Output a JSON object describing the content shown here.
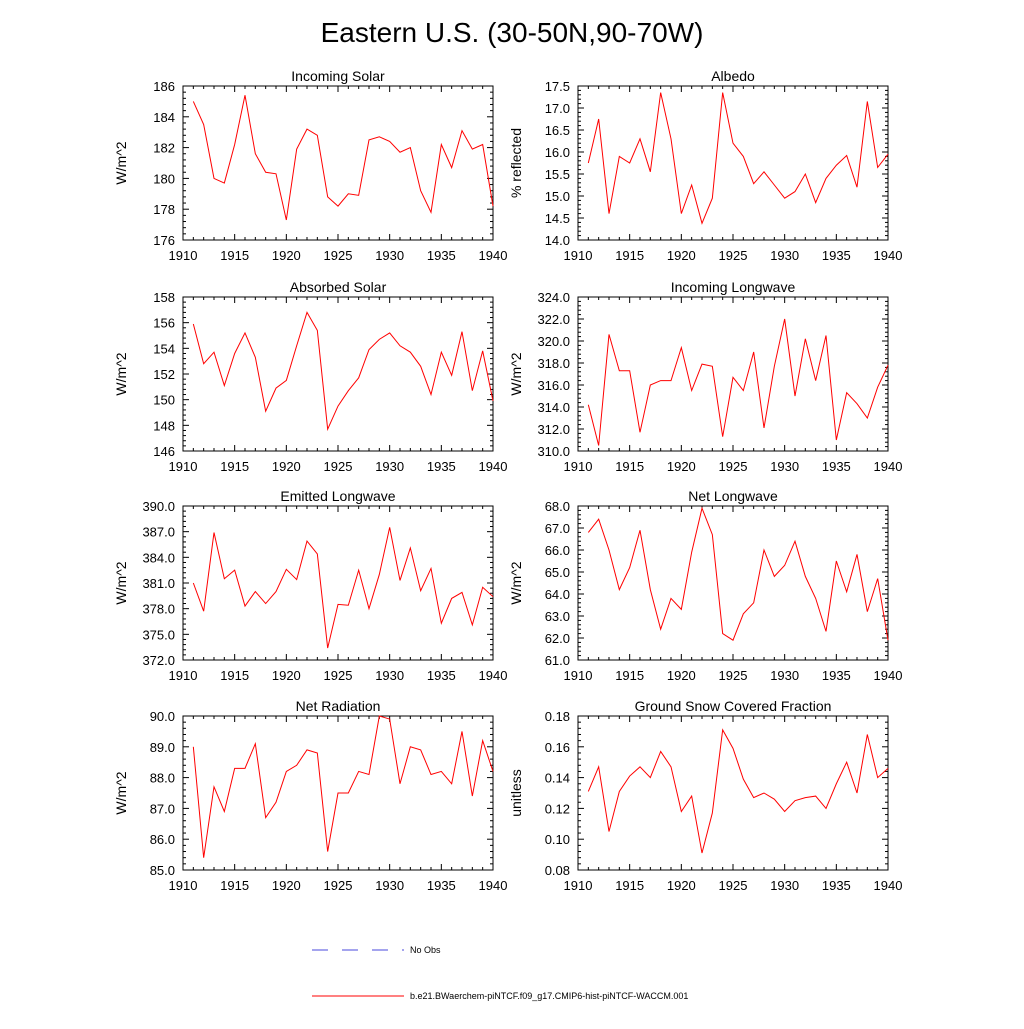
{
  "title": "Eastern U.S. (30-50N,90-70W)",
  "legend": {
    "obs_label": "No Obs",
    "model_label": "b.e21.BWaerchem-piNTCF.f09_g17.CMIP6-hist-piNTCF-WACCM.001",
    "obs_color": "#4a4adc",
    "model_color": "#ff0000"
  },
  "chart_data": [
    {
      "type": "line",
      "title": "Incoming Solar",
      "ylabel": "W/m^2",
      "xlabel": "",
      "xlim": [
        1910,
        1940
      ],
      "ylim": [
        176,
        186
      ],
      "xticks": [
        "1910",
        "1915",
        "1920",
        "1925",
        "1930",
        "1935",
        "1940"
      ],
      "yticks": [
        "176",
        "178",
        "180",
        "182",
        "184",
        "186"
      ],
      "x": [
        1911,
        1912,
        1913,
        1914,
        1915,
        1916,
        1917,
        1918,
        1919,
        1920,
        1921,
        1922,
        1923,
        1924,
        1925,
        1926,
        1927,
        1928,
        1929,
        1930,
        1931,
        1932,
        1933,
        1934,
        1935,
        1936,
        1937,
        1938,
        1939,
        1940
      ],
      "series": [
        {
          "color": "#ff0000",
          "values": [
            185.0,
            183.5,
            180.0,
            179.7,
            182.2,
            185.4,
            181.6,
            180.4,
            180.3,
            177.3,
            181.9,
            183.2,
            182.8,
            178.8,
            178.2,
            179.0,
            178.9,
            182.5,
            182.7,
            182.4,
            181.7,
            182.0,
            179.2,
            177.8,
            182.2,
            180.7,
            183.1,
            181.9,
            182.2,
            178.2
          ]
        }
      ]
    },
    {
      "type": "line",
      "title": "Albedo",
      "ylabel": "% reflected",
      "xlabel": "",
      "xlim": [
        1910,
        1940
      ],
      "ylim": [
        14.0,
        17.5
      ],
      "xticks": [
        "1910",
        "1915",
        "1920",
        "1925",
        "1930",
        "1935",
        "1940"
      ],
      "yticks": [
        "14.0",
        "14.5",
        "15.0",
        "15.5",
        "16.0",
        "16.5",
        "17.0",
        "17.5"
      ],
      "x": [
        1911,
        1912,
        1913,
        1914,
        1915,
        1916,
        1917,
        1918,
        1919,
        1920,
        1921,
        1922,
        1923,
        1924,
        1925,
        1926,
        1927,
        1928,
        1929,
        1930,
        1931,
        1932,
        1933,
        1934,
        1935,
        1936,
        1937,
        1938,
        1939,
        1940
      ],
      "series": [
        {
          "color": "#ff0000",
          "values": [
            15.75,
            16.75,
            14.6,
            15.9,
            15.75,
            16.3,
            15.55,
            17.35,
            16.3,
            14.6,
            15.25,
            14.38,
            14.95,
            17.35,
            16.2,
            15.9,
            15.28,
            15.55,
            15.25,
            14.95,
            15.1,
            15.5,
            14.85,
            15.4,
            15.7,
            15.92,
            15.2,
            17.15,
            15.65,
            15.95
          ]
        }
      ]
    },
    {
      "type": "line",
      "title": "Absorbed Solar",
      "ylabel": "W/m^2",
      "xlabel": "",
      "xlim": [
        1910,
        1940
      ],
      "ylim": [
        146,
        158
      ],
      "xticks": [
        "1910",
        "1915",
        "1920",
        "1925",
        "1930",
        "1935",
        "1940"
      ],
      "yticks": [
        "146",
        "148",
        "150",
        "152",
        "154",
        "156",
        "158"
      ],
      "x": [
        1911,
        1912,
        1913,
        1914,
        1915,
        1916,
        1917,
        1918,
        1919,
        1920,
        1921,
        1922,
        1923,
        1924,
        1925,
        1926,
        1927,
        1928,
        1929,
        1930,
        1931,
        1932,
        1933,
        1934,
        1935,
        1936,
        1937,
        1938,
        1939,
        1940
      ],
      "series": [
        {
          "color": "#ff0000",
          "values": [
            155.9,
            152.8,
            153.7,
            151.1,
            153.6,
            155.2,
            153.3,
            149.1,
            150.9,
            151.5,
            154.2,
            156.8,
            155.4,
            147.7,
            149.5,
            150.7,
            151.7,
            153.9,
            154.7,
            155.2,
            154.2,
            153.7,
            152.6,
            150.4,
            153.7,
            151.9,
            155.3,
            150.7,
            153.8,
            149.9
          ]
        }
      ]
    },
    {
      "type": "line",
      "title": "Incoming Longwave",
      "ylabel": "W/m^2",
      "xlabel": "",
      "xlim": [
        1910,
        1940
      ],
      "ylim": [
        310.0,
        324.0
      ],
      "xticks": [
        "1910",
        "1915",
        "1920",
        "1925",
        "1930",
        "1935",
        "1940"
      ],
      "yticks": [
        "310.0",
        "312.0",
        "314.0",
        "316.0",
        "318.0",
        "320.0",
        "322.0",
        "324.0"
      ],
      "x": [
        1911,
        1912,
        1913,
        1914,
        1915,
        1916,
        1917,
        1918,
        1919,
        1920,
        1921,
        1922,
        1923,
        1924,
        1925,
        1926,
        1927,
        1928,
        1929,
        1930,
        1931,
        1932,
        1933,
        1934,
        1935,
        1936,
        1937,
        1938,
        1939,
        1940
      ],
      "series": [
        {
          "color": "#ff0000",
          "values": [
            314.2,
            310.5,
            320.6,
            317.3,
            317.3,
            311.7,
            316.0,
            316.4,
            316.4,
            319.4,
            315.5,
            317.9,
            317.7,
            311.3,
            316.7,
            315.5,
            319.0,
            312.1,
            317.7,
            322.0,
            315.0,
            320.2,
            316.4,
            320.5,
            311.0,
            315.3,
            314.3,
            313.0,
            315.8,
            317.8
          ]
        }
      ]
    },
    {
      "type": "line",
      "title": "Emitted Longwave",
      "ylabel": "W/m^2",
      "xlabel": "",
      "xlim": [
        1910,
        1940
      ],
      "ylim": [
        372.0,
        390.0
      ],
      "xticks": [
        "1910",
        "1915",
        "1920",
        "1925",
        "1930",
        "1935",
        "1940"
      ],
      "yticks": [
        "372.0",
        "375.0",
        "378.0",
        "381.0",
        "384.0",
        "387.0",
        "390.0"
      ],
      "x": [
        1911,
        1912,
        1913,
        1914,
        1915,
        1916,
        1917,
        1918,
        1919,
        1920,
        1921,
        1922,
        1923,
        1924,
        1925,
        1926,
        1927,
        1928,
        1929,
        1930,
        1931,
        1932,
        1933,
        1934,
        1935,
        1936,
        1937,
        1938,
        1939,
        1940
      ],
      "series": [
        {
          "color": "#ff0000",
          "values": [
            381.0,
            377.7,
            386.9,
            381.5,
            382.5,
            378.3,
            380.0,
            378.6,
            380.0,
            382.6,
            381.4,
            385.9,
            384.4,
            373.4,
            378.5,
            378.4,
            382.5,
            378.0,
            382.0,
            387.5,
            381.3,
            385.1,
            380.1,
            382.7,
            376.3,
            379.2,
            379.9,
            376.1,
            380.5,
            379.4
          ]
        }
      ]
    },
    {
      "type": "line",
      "title": "Net Longwave",
      "ylabel": "W/m^2",
      "xlabel": "",
      "xlim": [
        1910,
        1940
      ],
      "ylim": [
        61.0,
        68.0
      ],
      "xticks": [
        "1910",
        "1915",
        "1920",
        "1925",
        "1930",
        "1935",
        "1940"
      ],
      "yticks": [
        "61.0",
        "62.0",
        "63.0",
        "64.0",
        "65.0",
        "66.0",
        "67.0",
        "68.0"
      ],
      "x": [
        1911,
        1912,
        1913,
        1914,
        1915,
        1916,
        1917,
        1918,
        1919,
        1920,
        1921,
        1922,
        1923,
        1924,
        1925,
        1926,
        1927,
        1928,
        1929,
        1930,
        1931,
        1932,
        1933,
        1934,
        1935,
        1936,
        1937,
        1938,
        1939,
        1940
      ],
      "series": [
        {
          "color": "#ff0000",
          "values": [
            66.8,
            67.4,
            66.0,
            64.2,
            65.2,
            66.9,
            64.2,
            62.4,
            63.8,
            63.3,
            65.9,
            67.9,
            66.7,
            62.2,
            61.9,
            63.1,
            63.6,
            66.0,
            64.8,
            65.3,
            66.4,
            64.8,
            63.8,
            62.3,
            65.5,
            64.1,
            65.8,
            63.2,
            64.7,
            61.9
          ]
        }
      ]
    },
    {
      "type": "line",
      "title": "Net Radiation",
      "ylabel": "W/m^2",
      "xlabel": "",
      "xlim": [
        1910,
        1940
      ],
      "ylim": [
        85.0,
        90.0
      ],
      "xticks": [
        "1910",
        "1915",
        "1920",
        "1925",
        "1930",
        "1935",
        "1940"
      ],
      "yticks": [
        "85.0",
        "86.0",
        "87.0",
        "88.0",
        "89.0",
        "90.0"
      ],
      "x": [
        1911,
        1912,
        1913,
        1914,
        1915,
        1916,
        1917,
        1918,
        1919,
        1920,
        1921,
        1922,
        1923,
        1924,
        1925,
        1926,
        1927,
        1928,
        1929,
        1930,
        1931,
        1932,
        1933,
        1934,
        1935,
        1936,
        1937,
        1938,
        1939,
        1940
      ],
      "series": [
        {
          "color": "#ff0000",
          "values": [
            89.0,
            85.4,
            87.7,
            86.9,
            88.3,
            88.3,
            89.1,
            86.7,
            87.2,
            88.2,
            88.4,
            88.9,
            88.8,
            85.6,
            87.5,
            87.5,
            88.2,
            88.1,
            90.0,
            89.9,
            87.8,
            89.0,
            88.9,
            88.1,
            88.2,
            87.8,
            89.5,
            87.4,
            89.2,
            88.2
          ]
        }
      ]
    },
    {
      "type": "line",
      "title": "Ground Snow Covered Fraction",
      "ylabel": "unitless",
      "xlabel": "",
      "xlim": [
        1910,
        1940
      ],
      "ylim": [
        0.08,
        0.18
      ],
      "xticks": [
        "1910",
        "1915",
        "1920",
        "1925",
        "1930",
        "1935",
        "1940"
      ],
      "yticks": [
        "0.08",
        "0.10",
        "0.12",
        "0.14",
        "0.16",
        "0.18"
      ],
      "x": [
        1911,
        1912,
        1913,
        1914,
        1915,
        1916,
        1917,
        1918,
        1919,
        1920,
        1921,
        1922,
        1923,
        1924,
        1925,
        1926,
        1927,
        1928,
        1929,
        1930,
        1931,
        1932,
        1933,
        1934,
        1935,
        1936,
        1937,
        1938,
        1939,
        1940
      ],
      "series": [
        {
          "color": "#ff0000",
          "values": [
            0.131,
            0.147,
            0.105,
            0.131,
            0.141,
            0.147,
            0.14,
            0.157,
            0.147,
            0.118,
            0.128,
            0.091,
            0.117,
            0.171,
            0.159,
            0.139,
            0.127,
            0.13,
            0.126,
            0.118,
            0.125,
            0.127,
            0.128,
            0.12,
            0.136,
            0.15,
            0.13,
            0.168,
            0.14,
            0.146
          ]
        }
      ]
    }
  ]
}
